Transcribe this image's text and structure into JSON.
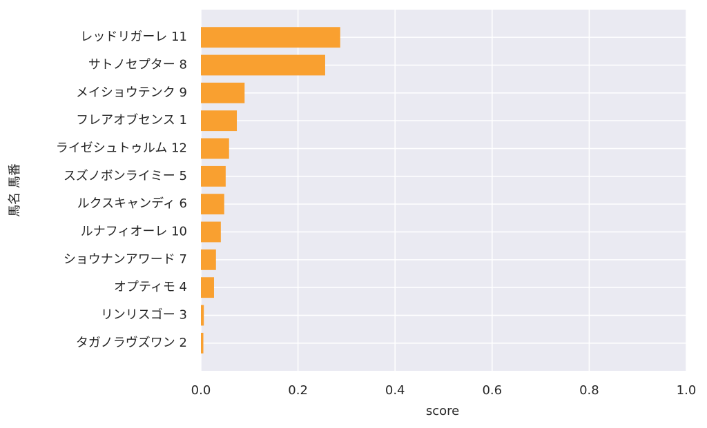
{
  "chart_data": {
    "type": "barh",
    "categories": [
      "レッドリガーレ 11",
      "サトノセプター 8",
      "メイショウテンク 9",
      "フレアオブセンス 1",
      "ライゼシュトゥルム 12",
      "スズノボンライミー 5",
      "ルクスキャンディ 6",
      "ルナフィオーレ 10",
      "ショウナンアワード 7",
      "オプティモ 4",
      "リンリスゴー 3",
      "タガノラヴズワン 2"
    ],
    "values": [
      0.287,
      0.256,
      0.09,
      0.074,
      0.058,
      0.051,
      0.048,
      0.041,
      0.031,
      0.027,
      0.006,
      0.005
    ],
    "color": "#f9a030",
    "xlabel": "score",
    "ylabel": "馬名 馬番",
    "xlim": [
      0,
      1
    ],
    "xticks": [
      {
        "value": 0,
        "label": "0.0"
      },
      0.2,
      0.4,
      0.6,
      0.8,
      {
        "value": 1,
        "label": "1.0"
      }
    ],
    "grid": true
  }
}
